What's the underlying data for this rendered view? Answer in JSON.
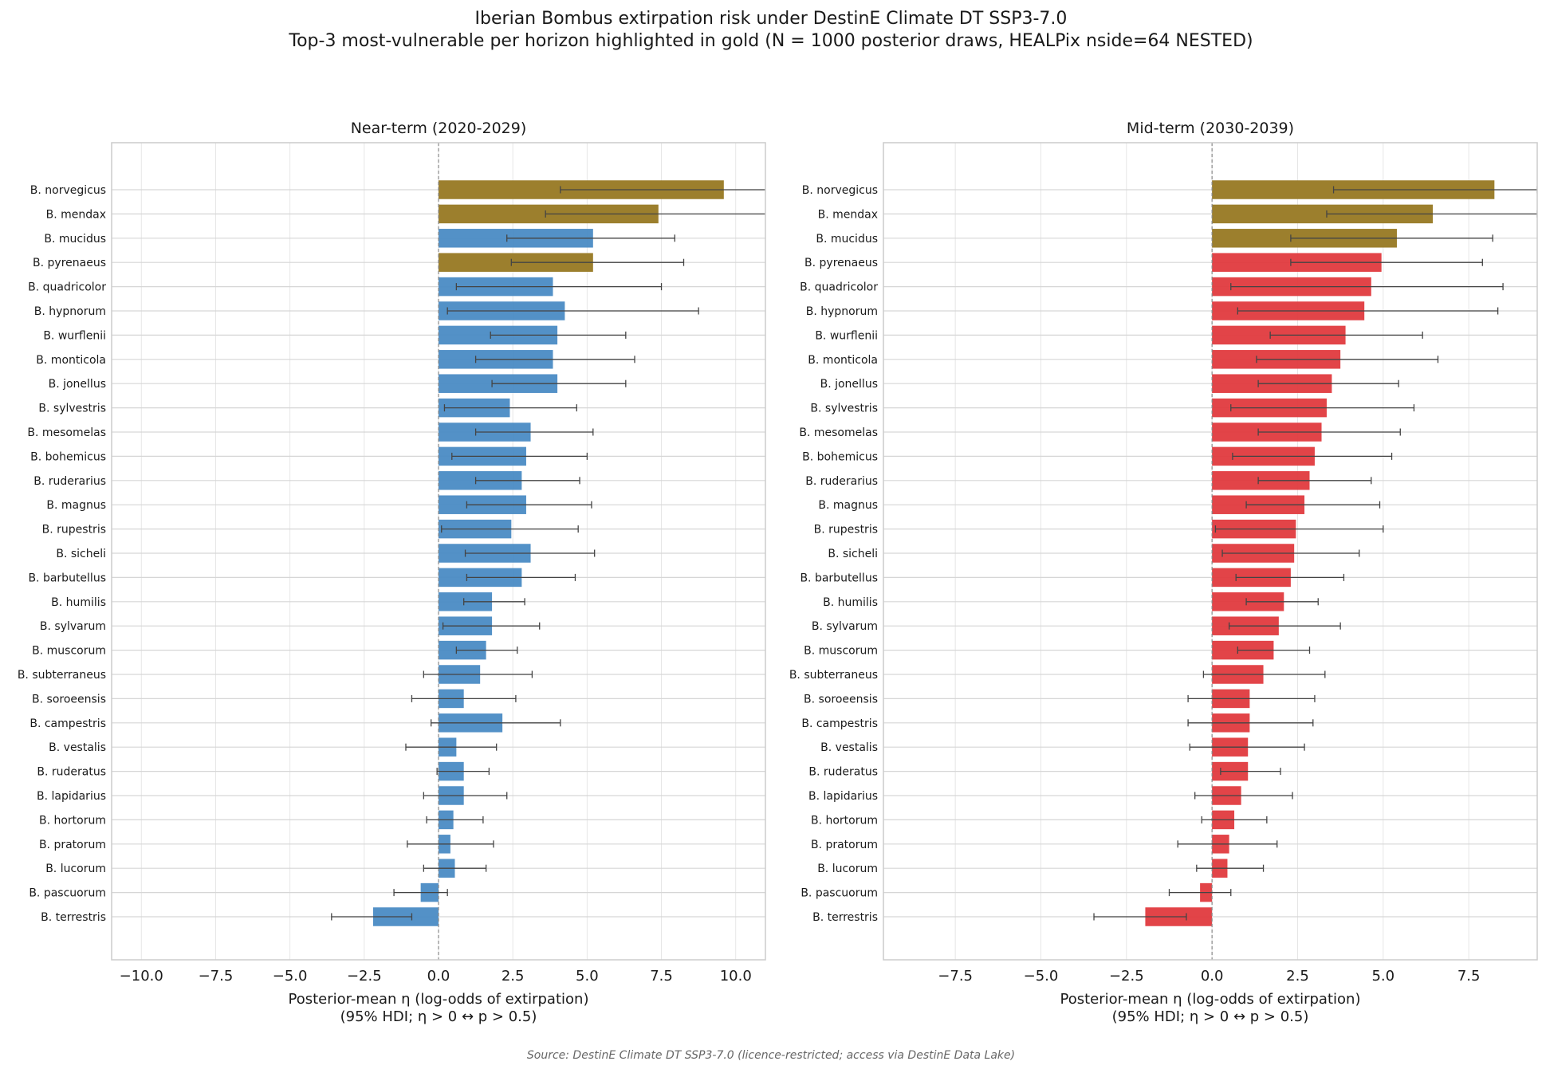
{
  "figure": {
    "title_line1": "Iberian Bombus extirpation risk under DestinE Climate DT SSP3-7.0",
    "title_line2": "Top-3 most-vulnerable per horizon highlighted in gold (N = 1000 posterior draws, HEALPix nside=64 NESTED)",
    "source": "Source: DestinE Climate DT SSP3-7.0 (licence-restricted; access via DestinE Data Lake)"
  },
  "colors": {
    "highlight": "#9c7f2d",
    "near_term": "#4a8bc4",
    "mid_term": "#e03a3e",
    "errorbar": "#444444",
    "grid": "#e6e6e6",
    "zero_line": "#888888",
    "frame": "#cccccc"
  },
  "chart_data": [
    {
      "type": "bar",
      "orientation": "horizontal",
      "title": "Near-term (2020-2029)",
      "xlabel_line1": "Posterior-mean η (log-odds of extirpation)",
      "xlabel_line2": "(95% HDI; η > 0 ↔ p > 0.5)",
      "xlim": [
        -11.0,
        11.0
      ],
      "xticks": [
        -10.0,
        -7.5,
        -5.0,
        -2.5,
        0.0,
        2.5,
        5.0,
        7.5,
        10.0
      ],
      "xtick_labels": [
        "−10.0",
        "−7.5",
        "−5.0",
        "−2.5",
        "0.0",
        "2.5",
        "5.0",
        "7.5",
        "10.0"
      ],
      "grid": true,
      "categories": [
        "B. norvegicus",
        "B. mendax",
        "B. mucidus",
        "B. pyrenaeus",
        "B. quadricolor",
        "B. hypnorum",
        "B. wurflenii",
        "B. monticola",
        "B. jonellus",
        "B. sylvestris",
        "B. mesomelas",
        "B. bohemicus",
        "B. ruderarius",
        "B. magnus",
        "B. rupestris",
        "B. sicheli",
        "B. barbutellus",
        "B. humilis",
        "B. sylvarum",
        "B. muscorum",
        "B. subterraneus",
        "B. soroeensis",
        "B. campestris",
        "B. vestalis",
        "B. ruderatus",
        "B. lapidarius",
        "B. hortorum",
        "B. pratorum",
        "B. lucorum",
        "B. pascuorum",
        "B. terrestris"
      ],
      "values": [
        9.6,
        7.4,
        5.2,
        5.2,
        3.85,
        4.25,
        4.0,
        3.85,
        4.0,
        2.4,
        3.1,
        2.95,
        2.8,
        2.95,
        2.45,
        3.1,
        2.8,
        1.8,
        1.8,
        1.6,
        1.4,
        0.85,
        2.15,
        0.6,
        0.85,
        0.85,
        0.5,
        0.4,
        0.55,
        -0.6,
        -2.2
      ],
      "hdi_low": [
        4.1,
        3.6,
        2.3,
        2.45,
        0.6,
        0.3,
        1.75,
        1.25,
        1.8,
        0.2,
        1.25,
        0.45,
        1.25,
        0.95,
        0.1,
        0.9,
        0.95,
        0.85,
        0.15,
        0.6,
        -0.5,
        -0.9,
        -0.25,
        -1.1,
        -0.05,
        -0.5,
        -0.4,
        -1.05,
        -0.5,
        -1.5,
        -3.6
      ],
      "hdi_high": [
        11.2,
        11.2,
        7.95,
        8.25,
        7.5,
        8.75,
        6.3,
        6.6,
        6.3,
        4.65,
        5.2,
        5.0,
        4.75,
        5.15,
        4.7,
        5.25,
        4.6,
        2.9,
        3.4,
        2.65,
        3.15,
        2.6,
        4.1,
        1.95,
        1.7,
        2.3,
        1.5,
        1.85,
        1.6,
        0.3,
        -0.9
      ],
      "highlighted": [
        "B. norvegicus",
        "B. mendax",
        "B. pyrenaeus"
      ]
    },
    {
      "type": "bar",
      "orientation": "horizontal",
      "title": "Mid-term (2030-2039)",
      "xlabel_line1": "Posterior-mean η (log-odds of extirpation)",
      "xlabel_line2": "(95% HDI; η > 0 ↔ p > 0.5)",
      "xlim": [
        -9.6,
        9.5
      ],
      "xticks": [
        -7.5,
        -5.0,
        -2.5,
        0.0,
        2.5,
        5.0,
        7.5
      ],
      "xtick_labels": [
        "−7.5",
        "−5.0",
        "−2.5",
        "0.0",
        "2.5",
        "5.0",
        "7.5"
      ],
      "grid": true,
      "categories": [
        "B. norvegicus",
        "B. mendax",
        "B. mucidus",
        "B. pyrenaeus",
        "B. quadricolor",
        "B. hypnorum",
        "B. wurflenii",
        "B. monticola",
        "B. jonellus",
        "B. sylvestris",
        "B. mesomelas",
        "B. bohemicus",
        "B. ruderarius",
        "B. magnus",
        "B. rupestris",
        "B. sicheli",
        "B. barbutellus",
        "B. humilis",
        "B. sylvarum",
        "B. muscorum",
        "B. subterraneus",
        "B. soroeensis",
        "B. campestris",
        "B. vestalis",
        "B. ruderatus",
        "B. lapidarius",
        "B. hortorum",
        "B. pratorum",
        "B. lucorum",
        "B. pascuorum",
        "B. terrestris"
      ],
      "values": [
        8.25,
        6.45,
        5.4,
        4.95,
        4.65,
        4.45,
        3.9,
        3.75,
        3.5,
        3.35,
        3.2,
        3.0,
        2.85,
        2.7,
        2.45,
        2.4,
        2.3,
        2.1,
        1.95,
        1.8,
        1.5,
        1.1,
        1.1,
        1.05,
        1.05,
        0.85,
        0.65,
        0.5,
        0.45,
        -0.35,
        -1.95
      ],
      "hdi_low": [
        3.55,
        3.35,
        2.3,
        2.3,
        0.55,
        0.75,
        1.7,
        1.3,
        1.35,
        0.55,
        1.35,
        0.6,
        1.35,
        1.0,
        0.1,
        0.3,
        0.7,
        1.0,
        0.5,
        0.75,
        -0.25,
        -0.7,
        -0.7,
        -0.65,
        0.25,
        -0.5,
        -0.3,
        -1.0,
        -0.45,
        -1.25,
        -3.45
      ],
      "hdi_high": [
        9.5,
        9.5,
        8.2,
        7.9,
        8.5,
        8.35,
        6.15,
        6.6,
        5.45,
        5.9,
        5.5,
        5.25,
        4.65,
        4.9,
        5.0,
        4.3,
        3.85,
        3.1,
        3.75,
        2.85,
        3.3,
        3.0,
        2.95,
        2.7,
        2.0,
        2.35,
        1.6,
        1.9,
        1.5,
        0.55,
        -0.75
      ],
      "highlighted": [
        "B. norvegicus",
        "B. mendax",
        "B. mucidus"
      ]
    }
  ]
}
